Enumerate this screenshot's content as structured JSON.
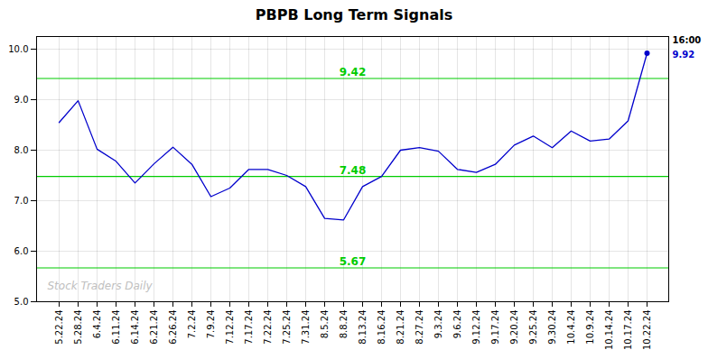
{
  "chart_data": {
    "type": "line",
    "title": "PBPB Long Term Signals",
    "categories": [
      "5.22.24",
      "5.28.24",
      "6.4.24",
      "6.11.24",
      "6.14.24",
      "6.21.24",
      "6.26.24",
      "7.2.24",
      "7.9.24",
      "7.12.24",
      "7.17.24",
      "7.22.24",
      "7.25.24",
      "7.31.24",
      "8.5.24",
      "8.8.24",
      "8.13.24",
      "8.16.24",
      "8.21.24",
      "8.27.24",
      "9.3.24",
      "9.6.24",
      "9.12.24",
      "9.17.24",
      "9.20.24",
      "9.25.24",
      "9.30.24",
      "10.4.24",
      "10.9.24",
      "10.14.24",
      "10.17.24",
      "10.22.24"
    ],
    "values": [
      8.55,
      8.98,
      8.02,
      7.78,
      7.35,
      7.73,
      8.06,
      7.72,
      7.08,
      7.25,
      7.62,
      7.62,
      7.5,
      7.28,
      6.65,
      6.62,
      7.28,
      7.48,
      8.0,
      8.05,
      7.98,
      7.62,
      7.56,
      7.72,
      8.1,
      8.28,
      8.05,
      8.38,
      8.18,
      8.22,
      8.58,
      9.92
    ],
    "color": "#0000cc",
    "hlines": [
      {
        "value": 9.42,
        "label": "9.42",
        "color": "#00cc00"
      },
      {
        "value": 7.48,
        "label": "7.48",
        "color": "#00cc00"
      },
      {
        "value": 5.67,
        "label": "5.67",
        "color": "#00cc00"
      }
    ],
    "last_point": {
      "time": "16:00",
      "value": 9.92,
      "color": "#0000cc"
    },
    "watermark": "Stock Traders Daily",
    "ylim": [
      5.0,
      10.25
    ],
    "yticks": [
      5,
      6,
      7,
      8,
      9,
      10
    ],
    "grid": true
  }
}
